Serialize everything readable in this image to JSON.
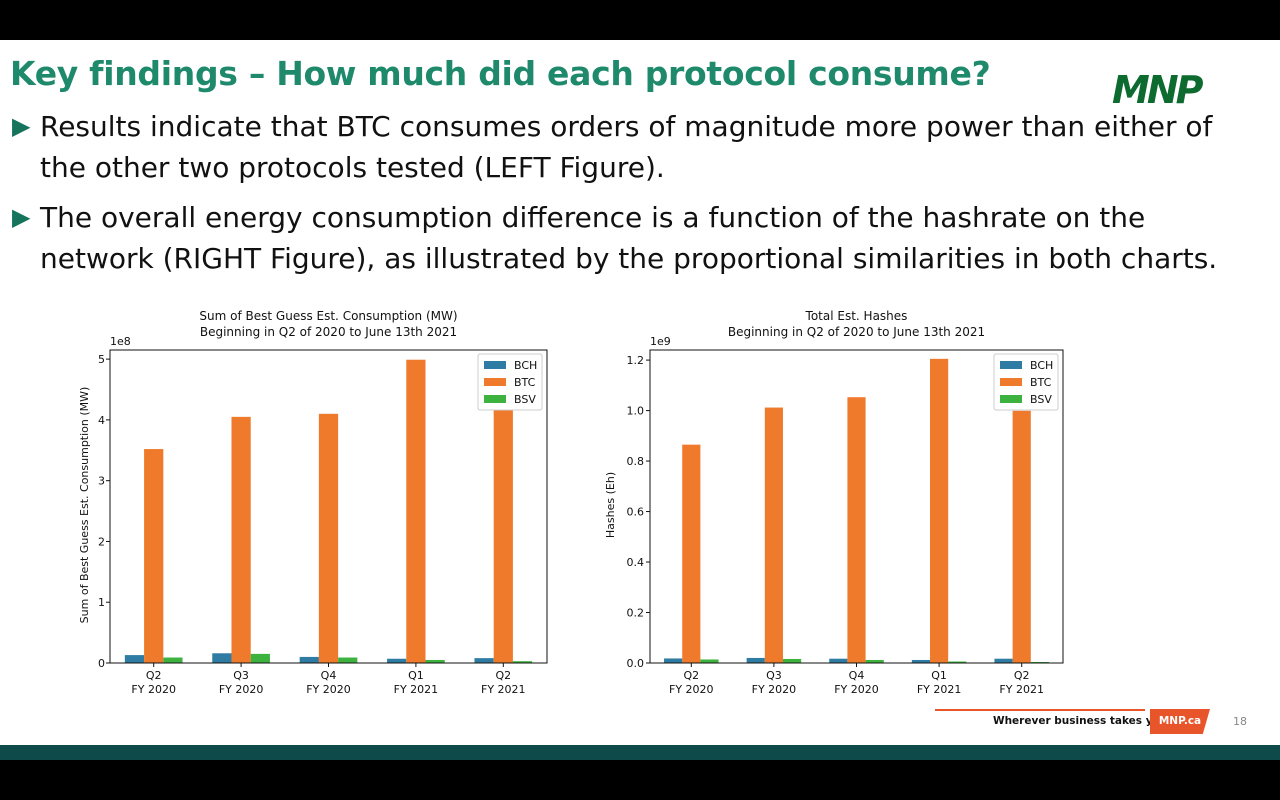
{
  "slide": {
    "title": "Key findings – How much did each protocol consume?",
    "logo": "MNP",
    "bullets": [
      {
        "text": "Results indicate that BTC consumes orders of magnitude more power than either of the other two protocols tested (LEFT Figure)."
      },
      {
        "text": "The overall energy consumption difference is a function of the hashrate on the network (RIGHT Figure), as illustrated by the proportional similarities in both charts."
      }
    ],
    "bullet_marker": "▶",
    "footer": {
      "tagline": "Wherever business takes you",
      "badge": "MNP.ca",
      "page_number": "18"
    }
  },
  "chart_data": [
    {
      "type": "bar",
      "title": "Sum of Best Guess Est. Consumption (MW)",
      "subtitle": "Beginning in Q2 of 2020 to June 13th 2021",
      "xlabel": "",
      "ylabel": "Sum of Best Guess Est. Consumption (MW)",
      "offset_label": "1e8",
      "ylim": [
        0,
        5.15
      ],
      "yticks": [
        0,
        1,
        2,
        3,
        4,
        5
      ],
      "categories": [
        [
          "Q2",
          "FY 2020"
        ],
        [
          "Q3",
          "FY 2020"
        ],
        [
          "Q4",
          "FY 2020"
        ],
        [
          "Q1",
          "FY 2021"
        ],
        [
          "Q2",
          "FY 2021"
        ]
      ],
      "series": [
        {
          "name": "BCH",
          "color": "#2e7ca3",
          "values": [
            0.13,
            0.16,
            0.1,
            0.07,
            0.08
          ]
        },
        {
          "name": "BTC",
          "color": "#f07a2b",
          "values": [
            3.52,
            4.05,
            4.1,
            4.99,
            4.19
          ]
        },
        {
          "name": "BSV",
          "color": "#3db23f",
          "values": [
            0.09,
            0.15,
            0.09,
            0.05,
            0.03
          ]
        }
      ],
      "legend": "top-right",
      "grid": false
    },
    {
      "type": "bar",
      "title": "Total Est. Hashes",
      "subtitle": "Beginning in Q2 of 2020 to June 13th 2021",
      "xlabel": "",
      "ylabel": "Hashes (Eh)",
      "offset_label": "1e9",
      "ylim": [
        0,
        1.24
      ],
      "yticks": [
        "0.0",
        "0.2",
        "0.4",
        "0.6",
        "0.8",
        "1.0",
        "1.2"
      ],
      "categories": [
        [
          "Q2",
          "FY 2020"
        ],
        [
          "Q3",
          "FY 2020"
        ],
        [
          "Q4",
          "FY 2020"
        ],
        [
          "Q1",
          "FY 2021"
        ],
        [
          "Q2",
          "FY 2021"
        ]
      ],
      "series": [
        {
          "name": "BCH",
          "color": "#2e7ca3",
          "values": [
            0.018,
            0.02,
            0.017,
            0.012,
            0.017
          ]
        },
        {
          "name": "BTC",
          "color": "#f07a2b",
          "values": [
            0.865,
            1.012,
            1.053,
            1.205,
            0.999
          ]
        },
        {
          "name": "BSV",
          "color": "#3db23f",
          "values": [
            0.014,
            0.016,
            0.012,
            0.006,
            0.004
          ]
        }
      ],
      "legend": "top-right",
      "grid": false
    }
  ]
}
